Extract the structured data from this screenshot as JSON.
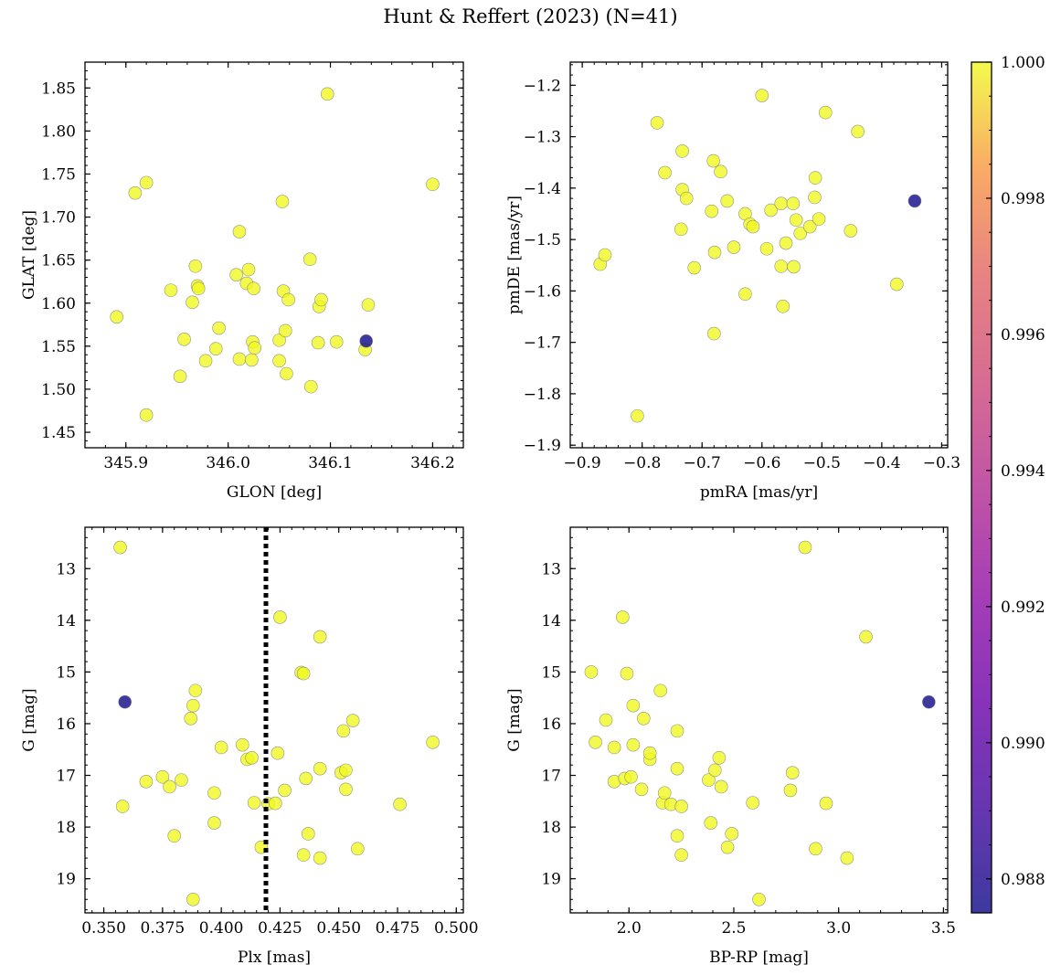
{
  "figure": {
    "title": "Hunt & Reffert (2023) (N=41)"
  },
  "colorbar": {
    "colormap": "plasma",
    "range": [
      0.9875,
      1.0
    ],
    "ticks": [
      0.988,
      0.99,
      0.992,
      0.994,
      0.996,
      0.998,
      1.0
    ],
    "tick_labels": [
      "0.988",
      "0.990",
      "0.992",
      "0.994",
      "0.996",
      "0.998",
      "1.000"
    ]
  },
  "colors": {
    "member_high": "#f0f921",
    "member_low": "#0d0887",
    "cut_line": "#000000"
  },
  "chart_data": [
    {
      "type": "scatter",
      "id": "pos",
      "xlabel": "GLON [deg]",
      "ylabel": "GLAT [deg]",
      "xlim": [
        345.86,
        346.23
      ],
      "ylim": [
        1.432,
        1.88
      ],
      "xticks": [
        345.9,
        346.0,
        346.1,
        346.2
      ],
      "xtick_labels": [
        "345.9",
        "346.0",
        "346.1",
        "346.2"
      ],
      "yticks": [
        1.45,
        1.5,
        1.55,
        1.6,
        1.65,
        1.7,
        1.75,
        1.8,
        1.85
      ],
      "ytick_labels": [
        "1.45",
        "1.50",
        "1.55",
        "1.60",
        "1.65",
        "1.70",
        "1.75",
        "1.80",
        "1.85"
      ],
      "points": [
        [
          346.135,
          1.556
        ],
        [
          345.891,
          1.584
        ],
        [
          345.909,
          1.728
        ],
        [
          345.92,
          1.74
        ],
        [
          345.92,
          1.47
        ],
        [
          345.944,
          1.615
        ],
        [
          345.953,
          1.515
        ],
        [
          345.957,
          1.558
        ],
        [
          345.965,
          1.601
        ],
        [
          345.968,
          1.643
        ],
        [
          345.97,
          1.62
        ],
        [
          345.971,
          1.617
        ],
        [
          345.978,
          1.533
        ],
        [
          345.988,
          1.547
        ],
        [
          345.991,
          1.571
        ],
        [
          346.008,
          1.633
        ],
        [
          346.011,
          1.683
        ],
        [
          346.011,
          1.535
        ],
        [
          346.018,
          1.623
        ],
        [
          346.02,
          1.639
        ],
        [
          346.023,
          1.534
        ],
        [
          346.024,
          1.555
        ],
        [
          346.025,
          1.617
        ],
        [
          346.026,
          1.548
        ],
        [
          346.05,
          1.557
        ],
        [
          346.05,
          1.533
        ],
        [
          346.053,
          1.718
        ],
        [
          346.054,
          1.614
        ],
        [
          346.056,
          1.568
        ],
        [
          346.057,
          1.518
        ],
        [
          346.059,
          1.604
        ],
        [
          346.08,
          1.651
        ],
        [
          346.081,
          1.503
        ],
        [
          346.088,
          1.554
        ],
        [
          346.089,
          1.596
        ],
        [
          346.091,
          1.604
        ],
        [
          346.097,
          1.843
        ],
        [
          346.106,
          1.555
        ],
        [
          346.134,
          1.546
        ],
        [
          346.137,
          1.598
        ],
        [
          346.2,
          1.738
        ]
      ],
      "memb": [
        0.9875,
        1.0,
        1.0,
        1.0,
        1.0,
        1.0,
        1.0,
        1.0,
        1.0,
        1.0,
        1.0,
        1.0,
        1.0,
        1.0,
        1.0,
        1.0,
        1.0,
        1.0,
        1.0,
        1.0,
        1.0,
        1.0,
        1.0,
        1.0,
        1.0,
        1.0,
        1.0,
        1.0,
        1.0,
        1.0,
        1.0,
        1.0,
        1.0,
        1.0,
        1.0,
        1.0,
        1.0,
        1.0,
        1.0,
        1.0,
        1.0
      ]
    },
    {
      "type": "scatter",
      "id": "pm",
      "xlabel": "pmRA [mas/yr]",
      "ylabel": "pmDE [mas/yr]",
      "xlim": [
        -0.92,
        -0.29
      ],
      "ylim": [
        -1.905,
        -1.155
      ],
      "xticks": [
        -0.9,
        -0.8,
        -0.7,
        -0.6,
        -0.5,
        -0.4,
        -0.3
      ],
      "xtick_labels": [
        "−0.9",
        "−0.8",
        "−0.7",
        "−0.6",
        "−0.5",
        "−0.4",
        "−0.3"
      ],
      "yticks": [
        -1.9,
        -1.8,
        -1.7,
        -1.6,
        -1.5,
        -1.4,
        -1.3,
        -1.2
      ],
      "ytick_labels": [
        "−1.9",
        "−1.8",
        "−1.7",
        "−1.6",
        "−1.5",
        "−1.4",
        "−1.3",
        "−1.2"
      ],
      "points": [
        [
          -0.345,
          -1.425
        ],
        [
          -0.87,
          -1.548
        ],
        [
          -0.862,
          -1.53
        ],
        [
          -0.808,
          -1.843
        ],
        [
          -0.775,
          -1.273
        ],
        [
          -0.762,
          -1.37
        ],
        [
          -0.733,
          -1.328
        ],
        [
          -0.733,
          -1.403
        ],
        [
          -0.735,
          -1.48
        ],
        [
          -0.726,
          -1.42
        ],
        [
          -0.713,
          -1.555
        ],
        [
          -0.684,
          -1.445
        ],
        [
          -0.681,
          -1.347
        ],
        [
          -0.679,
          -1.525
        ],
        [
          -0.669,
          -1.368
        ],
        [
          -0.68,
          -1.683
        ],
        [
          -0.658,
          -1.425
        ],
        [
          -0.647,
          -1.515
        ],
        [
          -0.628,
          -1.45
        ],
        [
          -0.628,
          -1.606
        ],
        [
          -0.62,
          -1.47
        ],
        [
          -0.615,
          -1.475
        ],
        [
          -0.6,
          -1.22
        ],
        [
          -0.592,
          -1.518
        ],
        [
          -0.585,
          -1.443
        ],
        [
          -0.568,
          -1.43
        ],
        [
          -0.568,
          -1.552
        ],
        [
          -0.565,
          -1.63
        ],
        [
          -0.56,
          -1.507
        ],
        [
          -0.548,
          -1.43
        ],
        [
          -0.547,
          -1.553
        ],
        [
          -0.543,
          -1.462
        ],
        [
          -0.536,
          -1.488
        ],
        [
          -0.52,
          -1.475
        ],
        [
          -0.512,
          -1.418
        ],
        [
          -0.511,
          -1.38
        ],
        [
          -0.505,
          -1.46
        ],
        [
          -0.494,
          -1.253
        ],
        [
          -0.452,
          -1.483
        ],
        [
          -0.44,
          -1.29
        ],
        [
          -0.375,
          -1.587
        ]
      ],
      "memb": [
        0.9875,
        1.0,
        1.0,
        1.0,
        1.0,
        1.0,
        1.0,
        1.0,
        1.0,
        1.0,
        1.0,
        1.0,
        1.0,
        1.0,
        1.0,
        1.0,
        1.0,
        1.0,
        1.0,
        1.0,
        1.0,
        1.0,
        1.0,
        1.0,
        1.0,
        1.0,
        1.0,
        1.0,
        1.0,
        1.0,
        1.0,
        1.0,
        1.0,
        1.0,
        1.0,
        1.0,
        1.0,
        1.0,
        1.0,
        1.0,
        1.0
      ]
    },
    {
      "type": "scatter",
      "id": "plx",
      "xlabel": "Plx [mas]",
      "ylabel": "G [mag]",
      "xlim": [
        0.342,
        0.503
      ],
      "ylim": [
        19.66,
        12.2
      ],
      "xticks": [
        0.35,
        0.375,
        0.4,
        0.425,
        0.45,
        0.475,
        0.5
      ],
      "xtick_labels": [
        "0.350",
        "0.375",
        "0.400",
        "0.425",
        "0.450",
        "0.475",
        "0.500"
      ],
      "yticks": [
        13,
        14,
        15,
        16,
        17,
        18,
        19
      ],
      "ytick_labels": [
        "13",
        "14",
        "15",
        "16",
        "17",
        "18",
        "19"
      ],
      "vline": 0.419,
      "points": [
        [
          0.359,
          15.58
        ],
        [
          0.357,
          12.59
        ],
        [
          0.358,
          17.6
        ],
        [
          0.368,
          17.12
        ],
        [
          0.375,
          17.03
        ],
        [
          0.378,
          17.22
        ],
        [
          0.38,
          18.17
        ],
        [
          0.383,
          17.09
        ],
        [
          0.387,
          15.9
        ],
        [
          0.388,
          15.65
        ],
        [
          0.389,
          15.36
        ],
        [
          0.388,
          19.4
        ],
        [
          0.397,
          17.34
        ],
        [
          0.397,
          17.92
        ],
        [
          0.4,
          16.46
        ],
        [
          0.409,
          16.41
        ],
        [
          0.411,
          16.69
        ],
        [
          0.413,
          16.66
        ],
        [
          0.414,
          17.53
        ],
        [
          0.417,
          18.39
        ],
        [
          0.42,
          17.55
        ],
        [
          0.423,
          17.54
        ],
        [
          0.424,
          16.57
        ],
        [
          0.425,
          13.94
        ],
        [
          0.427,
          17.29
        ],
        [
          0.434,
          15.01
        ],
        [
          0.435,
          15.03
        ],
        [
          0.436,
          17.06
        ],
        [
          0.437,
          18.13
        ],
        [
          0.435,
          18.54
        ],
        [
          0.442,
          14.32
        ],
        [
          0.442,
          16.87
        ],
        [
          0.442,
          18.6
        ],
        [
          0.451,
          16.95
        ],
        [
          0.452,
          16.14
        ],
        [
          0.453,
          16.9
        ],
        [
          0.453,
          17.27
        ],
        [
          0.456,
          15.94
        ],
        [
          0.458,
          18.42
        ],
        [
          0.476,
          17.56
        ],
        [
          0.49,
          16.36
        ]
      ],
      "memb": [
        0.9875,
        1.0,
        1.0,
        1.0,
        1.0,
        1.0,
        1.0,
        1.0,
        1.0,
        1.0,
        1.0,
        1.0,
        1.0,
        1.0,
        1.0,
        1.0,
        1.0,
        1.0,
        1.0,
        1.0,
        1.0,
        1.0,
        1.0,
        1.0,
        1.0,
        1.0,
        1.0,
        1.0,
        1.0,
        1.0,
        1.0,
        1.0,
        1.0,
        1.0,
        1.0,
        1.0,
        1.0,
        1.0,
        1.0,
        1.0,
        1.0
      ]
    },
    {
      "type": "scatter",
      "id": "cmd",
      "xlabel": "BP-RP [mag]",
      "ylabel": "G [mag]",
      "xlim": [
        1.72,
        3.52
      ],
      "ylim": [
        19.66,
        12.2
      ],
      "xticks": [
        2.0,
        2.5,
        3.0,
        3.5
      ],
      "xtick_labels": [
        "2.0",
        "2.5",
        "3.0",
        "3.5"
      ],
      "yticks": [
        13,
        14,
        15,
        16,
        17,
        18,
        19
      ],
      "ytick_labels": [
        "13",
        "14",
        "15",
        "16",
        "17",
        "18",
        "19"
      ],
      "points": [
        [
          3.43,
          15.58
        ],
        [
          1.82,
          15.0
        ],
        [
          1.84,
          16.36
        ],
        [
          1.89,
          15.93
        ],
        [
          1.93,
          16.46
        ],
        [
          1.93,
          17.12
        ],
        [
          1.97,
          13.94
        ],
        [
          1.98,
          17.06
        ],
        [
          1.99,
          15.03
        ],
        [
          2.01,
          17.03
        ],
        [
          2.02,
          15.65
        ],
        [
          2.02,
          16.41
        ],
        [
          2.06,
          17.27
        ],
        [
          2.07,
          15.9
        ],
        [
          2.1,
          16.69
        ],
        [
          2.1,
          16.57
        ],
        [
          2.15,
          15.36
        ],
        [
          2.16,
          17.53
        ],
        [
          2.17,
          17.34
        ],
        [
          2.2,
          17.56
        ],
        [
          2.23,
          16.14
        ],
        [
          2.23,
          16.87
        ],
        [
          2.23,
          18.17
        ],
        [
          2.25,
          17.6
        ],
        [
          2.25,
          18.54
        ],
        [
          2.38,
          17.09
        ],
        [
          2.39,
          17.92
        ],
        [
          2.41,
          16.9
        ],
        [
          2.43,
          16.66
        ],
        [
          2.44,
          17.22
        ],
        [
          2.47,
          18.39
        ],
        [
          2.49,
          18.13
        ],
        [
          2.59,
          17.53
        ],
        [
          2.62,
          19.4
        ],
        [
          2.77,
          17.29
        ],
        [
          2.78,
          16.95
        ],
        [
          2.84,
          12.59
        ],
        [
          2.89,
          18.42
        ],
        [
          2.94,
          17.54
        ],
        [
          3.04,
          18.6
        ],
        [
          3.13,
          14.32
        ]
      ],
      "memb": [
        0.9875,
        1.0,
        1.0,
        1.0,
        1.0,
        1.0,
        1.0,
        1.0,
        1.0,
        1.0,
        1.0,
        1.0,
        1.0,
        1.0,
        1.0,
        1.0,
        1.0,
        1.0,
        1.0,
        1.0,
        1.0,
        1.0,
        1.0,
        1.0,
        1.0,
        1.0,
        1.0,
        1.0,
        1.0,
        1.0,
        1.0,
        1.0,
        1.0,
        1.0,
        1.0,
        1.0,
        1.0,
        1.0,
        1.0,
        1.0,
        1.0
      ]
    }
  ]
}
